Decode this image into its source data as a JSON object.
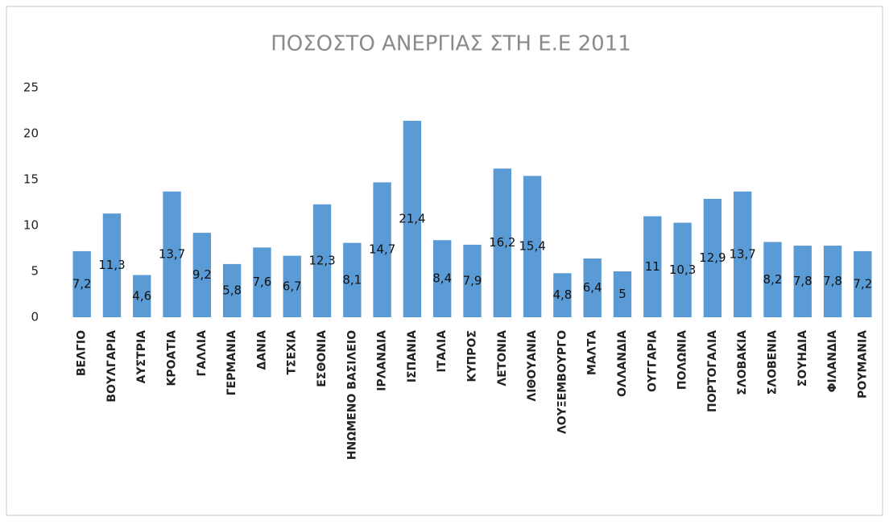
{
  "chart_data": {
    "type": "bar",
    "title": "ΠΟΣΟΣΤΟ  ΑΝΕΡΓΙΑΣ ΣΤΗ Ε.Ε 2011",
    "categories": [
      "ΒΕΛΓΙΟ",
      "ΒΟΥΛΓΑΡΙΑ",
      "ΑΥΣΤΡΙΑ",
      "ΚΡΟΑΤΙΑ",
      "ΓΑΛΛΙΑ",
      "ΓΕΡΜΑΝΙΑ",
      "ΔΑΝΙΑ",
      "ΤΣΕΧΙΑ",
      "ΕΣΘΟΝΙΑ",
      "ΗΝΩΜΕΝΟ ΒΑΣΙΛΕΙΟ",
      "ΙΡΛΑΝΔΙΑ",
      "ΙΣΠΑΝΙΑ",
      "ΙΤΑΛΙΑ",
      "ΚΥΠΡΟΣ",
      "ΛΕΤΟΝΙΑ",
      "ΛΙΘΟΥΑΝΙΑ",
      "ΛΟΥΞΕΜΒΟΥΡΓΟ",
      "ΜΑΛΤΑ",
      "ΟΛΛΑΝΔΙΑ",
      "ΟΥΓΓΑΡΙΑ",
      "ΠΟΛΩΝΙΑ",
      "ΠΟΡΤΟΓΑΛΙΑ",
      "ΣΛΟΒΑΚΙΑ",
      "ΣΛΟΒΕΝΙΑ",
      "ΣΟΥΗΔΙΑ",
      "ΦΙΛΑΝΔΙΑ",
      "ΡΟΥΜΑΝΙΑ"
    ],
    "values": [
      7.2,
      11.3,
      4.6,
      13.7,
      9.2,
      5.8,
      7.6,
      6.7,
      12.3,
      8.1,
      14.7,
      21.4,
      8.4,
      7.9,
      16.2,
      15.4,
      4.8,
      6.4,
      5,
      11,
      10.3,
      12.9,
      13.7,
      8.2,
      7.8,
      7.8,
      7.2
    ],
    "value_labels": [
      "7,2",
      "11,3",
      "4,6",
      "13,7",
      "9,2",
      "5,8",
      "7,6",
      "6,7",
      "12,3",
      "8,1",
      "14,7",
      "21,4",
      "8,4",
      "7,9",
      "16,2",
      "15,4",
      "4,8",
      "6,4",
      "5",
      "11",
      "10,3",
      "12,9",
      "13,7",
      "8,2",
      "7,8",
      "7,8",
      "7,2"
    ],
    "color": "#5b9bd5",
    "ylim": [
      0,
      25
    ],
    "yticks": [
      0,
      5,
      10,
      15,
      20,
      25
    ],
    "grid": false
  }
}
